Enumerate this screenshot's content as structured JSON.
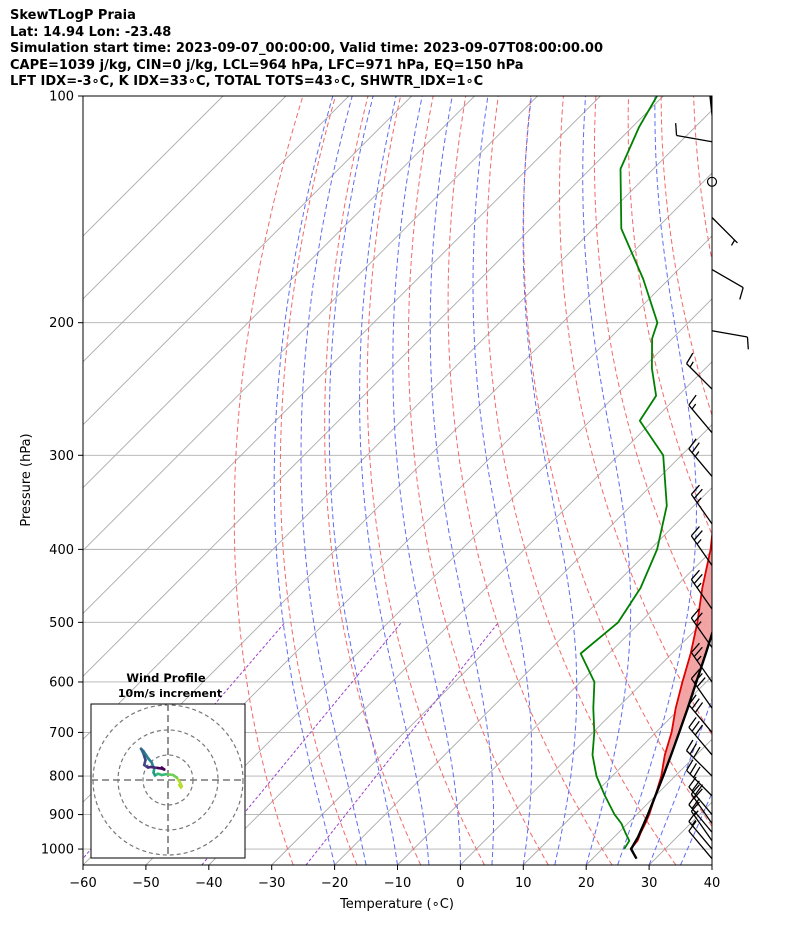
{
  "header": {
    "line1": "SkewTLogP Praia",
    "line2": "Lat: 14.94   Lon: -23.48",
    "line3": "Simulation start time: 2023-09-07_00:00:00, Valid time: 2023-09-07T08:00:00.00",
    "line4": "CAPE=1039 j/kg, CIN=0 j/kg, LCL=964 hPa, LFC=971 hPa, EQ=150 hPa",
    "line5": "LFT IDX=-3∘C, K IDX=33∘C, TOTAL TOTS=43∘C, SHWTR_IDX=1∘C"
  },
  "chart_data": {
    "type": "line",
    "subtype": "skew-T log-P",
    "xlabel": "Temperature (∘C)",
    "ylabel": "Pressure (hPa)",
    "xlim": [
      -60,
      40
    ],
    "ylim": [
      1050,
      100
    ],
    "yscale": "log",
    "x_ticks": [
      -60,
      -50,
      -40,
      -30,
      -20,
      -10,
      0,
      10,
      20,
      30,
      40
    ],
    "y_ticks": [
      100,
      200,
      300,
      400,
      500,
      600,
      700,
      800,
      900,
      1000
    ],
    "grid": true,
    "colors": {
      "temperature": "#e00000",
      "dewpoint": "#008000",
      "parcel": "#000000",
      "cape_fill": "#f2a0a0",
      "cin_fill": "#9ec4df",
      "dry_adiabat": "#f26a6a",
      "moist_adiabat": "#5f6df0",
      "mixing_ratio": "#9b40c8",
      "isotherm": "#aaaaaa"
    },
    "series": [
      {
        "key": "temperature",
        "pressure": [
          1000,
          975,
          950,
          925,
          900,
          850,
          800,
          750,
          700,
          650,
          600,
          550,
          500,
          450,
          400,
          350,
          300,
          250,
          200,
          175,
          150,
          140,
          125,
          110,
          100
        ],
        "values": [
          24.5,
          24.3,
          23.5,
          22.8,
          22.0,
          20.0,
          17.8,
          15.0,
          12.5,
          9.3,
          6.2,
          3.0,
          -0.9,
          -5.6,
          -10.4,
          -16.6,
          -23.9,
          -31.8,
          -43.3,
          -50.5,
          -58.2,
          -62.2,
          -68.5,
          -74.8,
          -79.3
        ]
      },
      {
        "key": "dewpoint",
        "pressure": [
          1000,
          975,
          950,
          925,
          900,
          850,
          800,
          750,
          700,
          650,
          600,
          550,
          500,
          450,
          400,
          350,
          300,
          270,
          250,
          230,
          210,
          200,
          175,
          150,
          125,
          110,
          100
        ],
        "values": [
          23.5,
          23.0,
          21.0,
          19.0,
          16.5,
          12.0,
          7.5,
          3.5,
          0.2,
          -3.8,
          -7.8,
          -14.5,
          -13.5,
          -15.4,
          -18.9,
          -24.3,
          -32.9,
          -42.1,
          -43.5,
          -48.5,
          -53.2,
          -54.9,
          -64.1,
          -75.6,
          -85.2,
          -88.9,
          -91.0
        ]
      },
      {
        "key": "parcel",
        "pressure": [
          1030,
          1000,
          964,
          900,
          850,
          800,
          750,
          700,
          650,
          600,
          550,
          500,
          450,
          400,
          350,
          300,
          250,
          200,
          175,
          150,
          125,
          110,
          100
        ],
        "values": [
          27.0,
          24.6,
          23.8,
          21.8,
          20.0,
          18.1,
          16.0,
          13.7,
          11.2,
          8.4,
          5.4,
          2.0,
          -2.1,
          -7.0,
          -12.8,
          -20.0,
          -29.0,
          -41.0,
          -49.0,
          -58.2,
          -69.5,
          -77.0,
          -82.5
        ]
      }
    ],
    "hodograph": {
      "title": "Wind Profile",
      "subtitle": "10m/s increment",
      "u": [
        4.5,
        5.2,
        5.5,
        4.8,
        3.5,
        2.0,
        0.5,
        -0.8,
        -2.5,
        -4.0,
        -5.2,
        -5.8,
        -5.5,
        -6.0,
        -6.5,
        -7.8,
        -8.8,
        -9.8,
        -10.8,
        -10.0,
        -9.5,
        -9.0,
        -9.5,
        -8.0,
        -7.0,
        -5.5,
        -4.0,
        -2.2,
        -1.5,
        -2.5
      ],
      "v": [
        -2.0,
        -3.0,
        -2.5,
        -1.0,
        1.0,
        2.0,
        2.2,
        2.3,
        2.0,
        2.5,
        1.8,
        3.0,
        4.5,
        5.5,
        7.0,
        8.5,
        10.0,
        11.5,
        12.5,
        11.0,
        9.5,
        8.0,
        6.0,
        5.0,
        5.2,
        5.0,
        4.8,
        4.5,
        4.2,
        5.0
      ]
    },
    "wind_barbs": {
      "pressure": [
        115,
        130,
        145,
        170,
        205,
        245,
        280,
        320,
        370,
        420,
        480,
        540,
        600,
        650,
        700,
        750,
        800,
        850,
        900,
        925,
        950,
        975,
        1000,
        1030
      ],
      "speed_kt": [
        10,
        0,
        5,
        10,
        10,
        15,
        15,
        25,
        25,
        25,
        25,
        25,
        25,
        30,
        30,
        30,
        30,
        30,
        30,
        20,
        20,
        15,
        15,
        10
      ],
      "direction_deg": [
        280,
        0,
        135,
        120,
        100,
        315,
        320,
        320,
        325,
        325,
        325,
        325,
        325,
        325,
        320,
        320,
        315,
        315,
        320,
        325,
        320,
        325,
        320,
        320
      ]
    }
  }
}
